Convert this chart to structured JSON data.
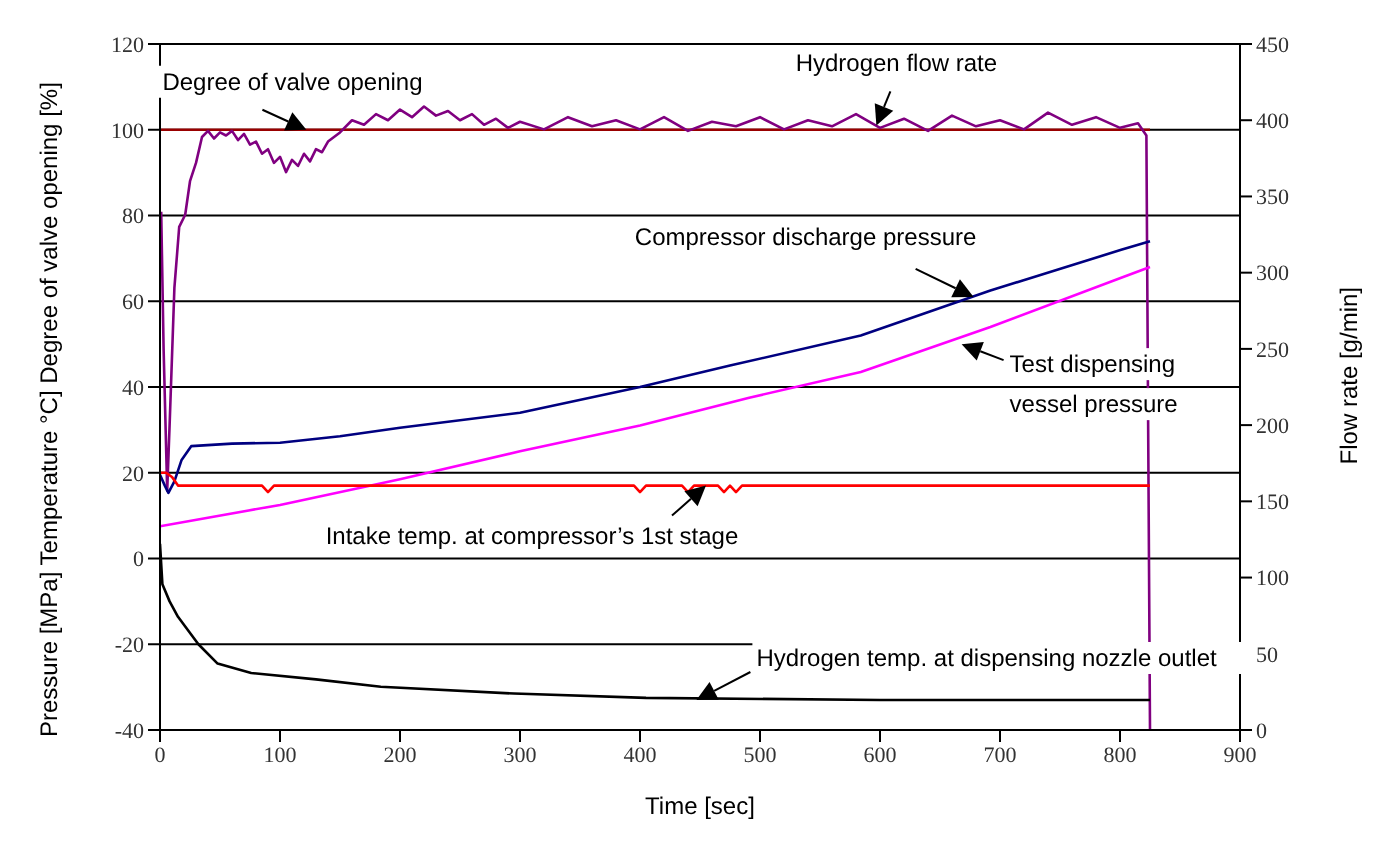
{
  "chart_data": {
    "type": "line",
    "xlabel": "Time [sec]",
    "ylabel": "Pressure [MPa]  Temperature °C]  Degree of valve opening [%]",
    "y2label": "Flow rate [g/min]",
    "xlim": [
      0,
      900
    ],
    "xticks": [
      0,
      100,
      200,
      300,
      400,
      500,
      600,
      700,
      800,
      900
    ],
    "ylim": [
      -40,
      120
    ],
    "yticks": [
      -40,
      -20,
      0,
      20,
      40,
      60,
      80,
      100,
      120
    ],
    "y2lim": [
      0,
      450
    ],
    "y2ticks": [
      0,
      50,
      100,
      150,
      200,
      250,
      300,
      350,
      400,
      450
    ],
    "grid": "y",
    "series": [
      {
        "color": "#990000",
        "x": [
          0,
          825
        ],
        "values": [
          100,
          100
        ]
      },
      {
        "color": "#800080",
        "axis": "y2",
        "x": [
          1,
          3,
          6,
          8,
          12,
          16,
          21,
          25,
          30,
          35,
          40,
          45,
          50,
          55,
          60,
          65,
          70,
          75,
          80,
          85,
          90,
          95,
          100,
          105,
          110,
          115,
          120,
          125,
          130,
          135,
          140,
          150,
          160,
          170,
          180,
          190,
          200,
          210,
          220,
          230,
          240,
          250,
          260,
          270,
          280,
          290,
          300,
          320,
          340,
          360,
          380,
          400,
          420,
          440,
          460,
          480,
          500,
          520,
          540,
          560,
          580,
          600,
          620,
          640,
          660,
          680,
          700,
          720,
          740,
          760,
          780,
          800,
          815,
          822,
          825
        ],
        "values": [
          340,
          250,
          157,
          200,
          290,
          330,
          338,
          360,
          372,
          389,
          393,
          388,
          392,
          390,
          393,
          387,
          391,
          384,
          386,
          378,
          381,
          372,
          376,
          366,
          374,
          370,
          378,
          373,
          381,
          379,
          386,
          392,
          400,
          397,
          404,
          400,
          407,
          402,
          409,
          403,
          406,
          400,
          404,
          397,
          401,
          395,
          399,
          394,
          402,
          396,
          400,
          394,
          402,
          393,
          399,
          396,
          402,
          394,
          400,
          396,
          404,
          395,
          401,
          393,
          403,
          396,
          400,
          394,
          405,
          397,
          402,
          395,
          398,
          390,
          0
        ]
      },
      {
        "color": "#000080",
        "x": [
          0,
          4,
          7,
          12,
          18,
          26,
          60,
          100,
          150,
          200,
          300,
          400,
          475,
          584,
          692,
          801,
          825
        ],
        "values": [
          19.5,
          17,
          15.3,
          18,
          23,
          26.2,
          26.8,
          27,
          28.5,
          30.5,
          34,
          40,
          45,
          52,
          62.5,
          72,
          74
        ]
      },
      {
        "color": "#ff00ff",
        "x": [
          0,
          100,
          200,
          300,
          400,
          491,
          584,
          692,
          801,
          825
        ],
        "values": [
          7.5,
          12.5,
          18.5,
          25,
          31,
          37.5,
          43.5,
          54,
          65.5,
          68
        ]
      },
      {
        "color": "#ff0000",
        "x": [
          0,
          5,
          10,
          15,
          85,
          90,
          95,
          395,
          400,
          405,
          435,
          440,
          445,
          465,
          470,
          475,
          480,
          485,
          490,
          825
        ],
        "values": [
          20,
          20,
          19,
          17,
          17,
          15.5,
          17,
          17,
          15.5,
          17,
          17,
          15.5,
          17,
          17,
          15.5,
          17,
          15.5,
          17,
          17,
          17
        ]
      },
      {
        "color": "#000000",
        "x": [
          0,
          2,
          8,
          15,
          32,
          48,
          76,
          130,
          184,
          295,
          405,
          600,
          825
        ],
        "values": [
          3.4,
          -6,
          -10,
          -13.6,
          -20,
          -24.5,
          -26.7,
          -28.2,
          -29.9,
          -31.5,
          -32.5,
          -33,
          -33
        ]
      }
    ],
    "annotations": [
      {
        "text": "Degree of valve opening",
        "x": 122,
        "y": 100
      },
      {
        "text": "Hydrogen flow rate",
        "x": 597,
        "y": 101
      },
      {
        "text": "Compressor discharge pressure",
        "x": 678,
        "y": 61
      },
      {
        "text": "Test dispensing\nvessel pressure",
        "x": 668,
        "y": 50
      },
      {
        "text": "Intake temp. at compressor’s 1st stage",
        "x": 455,
        "y": 17
      },
      {
        "text": "Hydrogen temp. at dispensing nozzle outlet",
        "x": 447,
        "y": -33
      }
    ]
  }
}
